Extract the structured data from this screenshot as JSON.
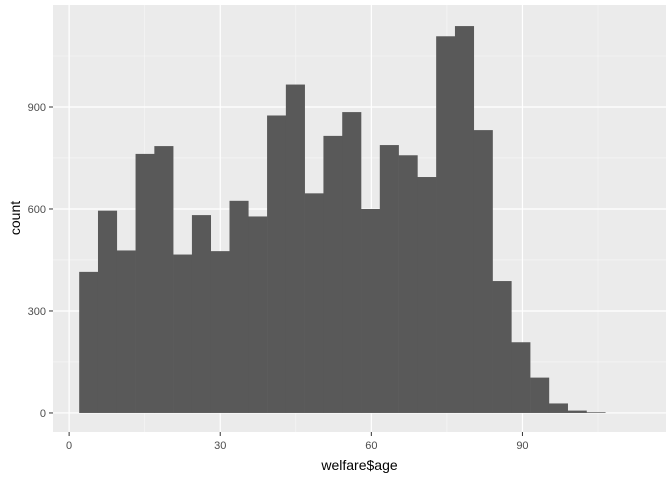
{
  "chart_data": {
    "type": "bar",
    "title": "",
    "xlabel": "welfare$age",
    "ylabel": "count",
    "x_bin_width": 3.73,
    "x_bin_start": 2,
    "xlim": [
      -3.2,
      118.5
    ],
    "ylim": [
      -56,
      1200
    ],
    "x_ticks": [
      0,
      30,
      60,
      90
    ],
    "y_ticks": [
      0,
      300,
      600,
      900
    ],
    "grid": true,
    "panel_color": "#ebebeb",
    "bar_color": "#595959",
    "values": [
      415,
      595,
      478,
      762,
      785,
      466,
      582,
      476,
      624,
      578,
      875,
      966,
      646,
      815,
      885,
      600,
      788,
      758,
      694,
      1108,
      1138,
      832,
      388,
      208,
      104,
      28,
      7,
      2
    ]
  }
}
